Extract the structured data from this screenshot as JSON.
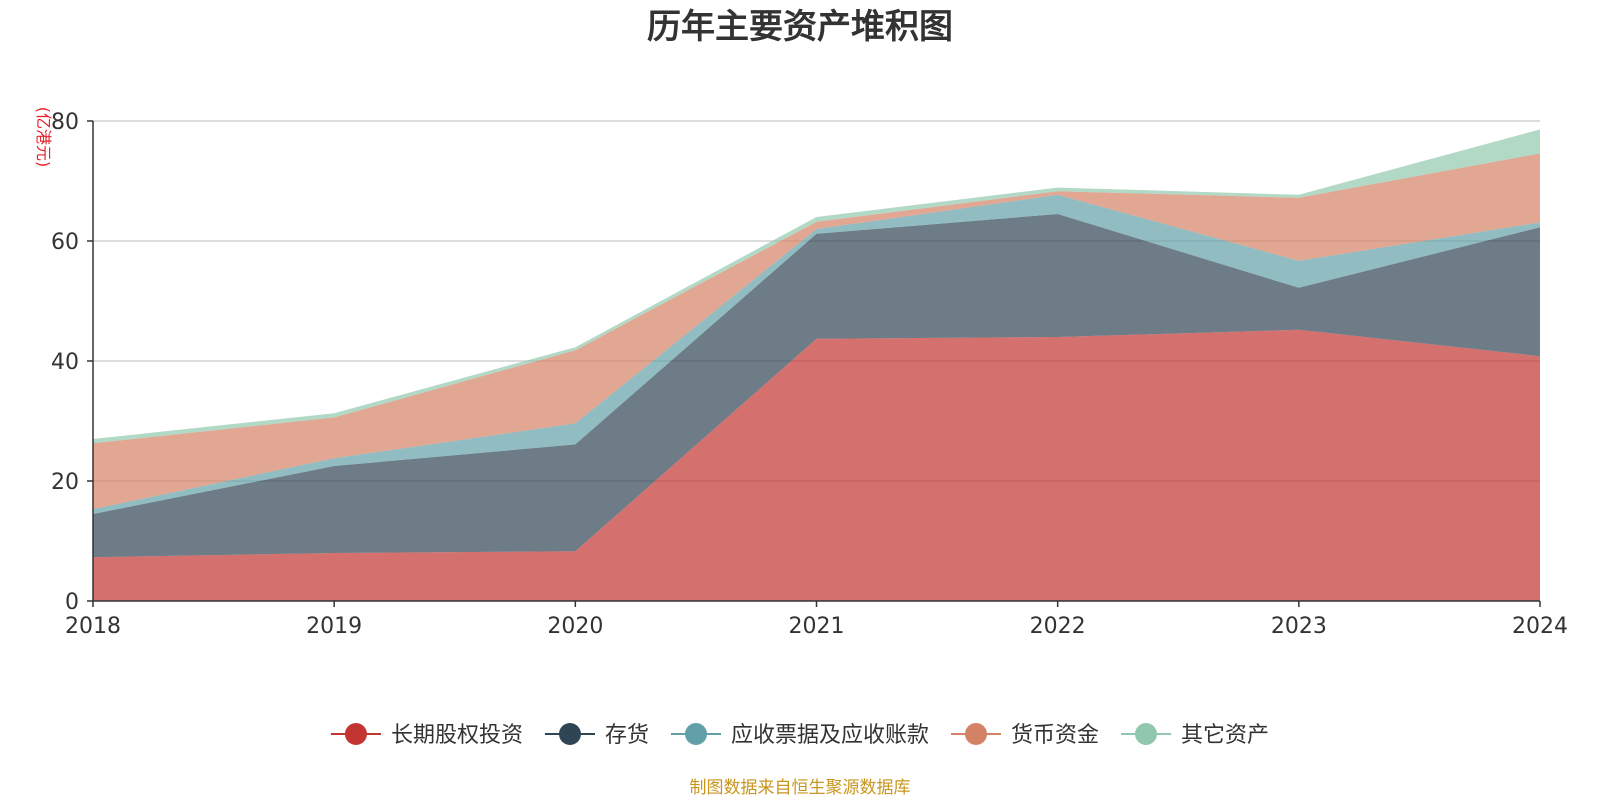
{
  "chart_data": {
    "type": "area",
    "stacked": true,
    "title": "历年主要资产堆积图",
    "unit_label": "(亿港元)",
    "x": [
      "2018",
      "2019",
      "2020",
      "2021",
      "2022",
      "2023",
      "2024"
    ],
    "ylim": [
      0,
      80
    ],
    "yticks": [
      "0",
      "20",
      "40",
      "60",
      "80"
    ],
    "grid": true,
    "legend_position": "bottom",
    "source": "制图数据来自恒生聚源数据库",
    "series": [
      {
        "name": "长期股权投资",
        "color": "#c23531",
        "values": [
          7.3,
          8.0,
          8.3,
          43.7,
          44.0,
          45.2,
          40.8
        ]
      },
      {
        "name": "存货",
        "color": "#2f4554",
        "values": [
          7.2,
          14.5,
          17.8,
          17.5,
          20.5,
          7.0,
          21.5
        ]
      },
      {
        "name": "应收票据及应收账款",
        "color": "#61a0a8",
        "values": [
          0.8,
          1.3,
          3.5,
          0.8,
          3.2,
          4.5,
          0.8
        ]
      },
      {
        "name": "货币资金",
        "color": "#d48265",
        "values": [
          11.0,
          6.8,
          12.2,
          1.2,
          0.6,
          10.5,
          11.5
        ]
      },
      {
        "name": "其它资产",
        "color": "#91c7ae",
        "values": [
          0.7,
          0.7,
          0.5,
          0.8,
          0.6,
          0.5,
          4.0
        ]
      }
    ]
  }
}
